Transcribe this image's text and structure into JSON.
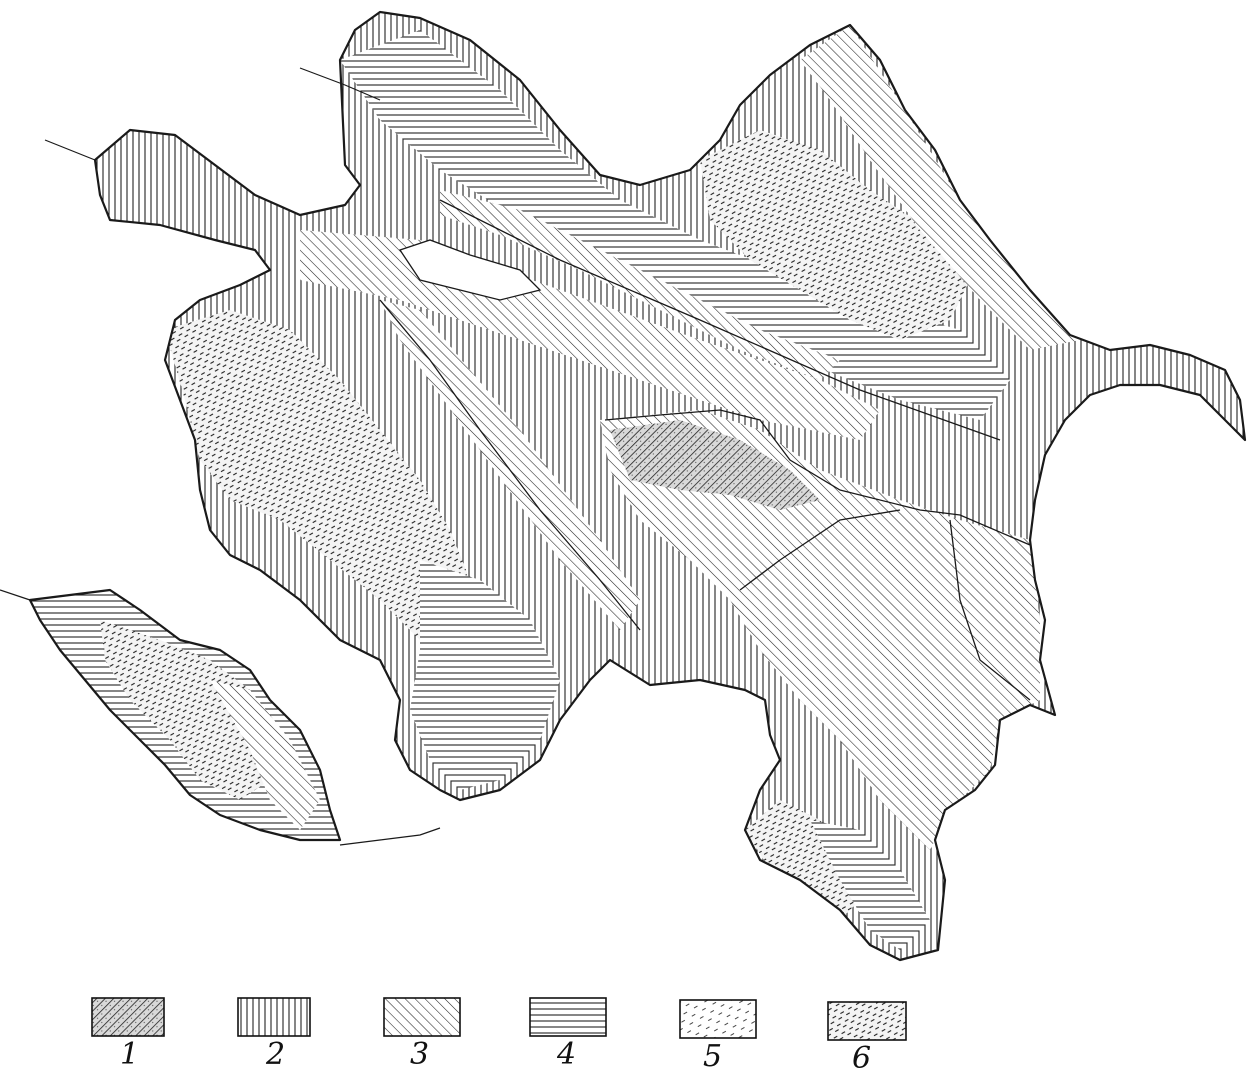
{
  "legend": {
    "items": [
      {
        "label": "1",
        "pattern": "pat-1",
        "style": "dense diagonal hatch with stipple"
      },
      {
        "label": "2",
        "pattern": "pat-2",
        "style": "vertical lines"
      },
      {
        "label": "3",
        "pattern": "pat-3",
        "style": "diagonal lines (down-right)"
      },
      {
        "label": "4",
        "pattern": "pat-4",
        "style": "horizontal lines"
      },
      {
        "label": "5",
        "pattern": "pat-5",
        "style": "sparse dashed hatch"
      },
      {
        "label": "6",
        "pattern": "pat-6",
        "style": "dashed hatch"
      }
    ]
  },
  "colors": {
    "ink": "#1a1a1a",
    "paper": "#ffffff"
  }
}
